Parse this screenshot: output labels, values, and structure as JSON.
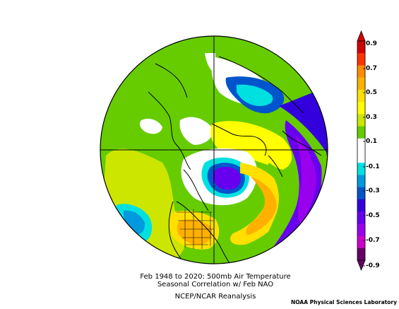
{
  "caption": {
    "line1": "Feb 1948 to 2020: 500mb Air Temperature",
    "line2": "Seasonal Correlation w/ Feb NAO",
    "line3": "NCEP/NCAR Reanalysis"
  },
  "credit": "NOAA Physical Sciences Laboratory",
  "colorbar": {
    "labels": [
      "0.9",
      "0.7",
      "0.5",
      "0.3",
      "0.1",
      "-0.1",
      "-0.3",
      "-0.5",
      "-0.7",
      "-0.9"
    ],
    "colors": [
      "#d40000",
      "#ff3300",
      "#ff8c00",
      "#ffb000",
      "#ffe000",
      "#ffff00",
      "#cce600",
      "#66cc00",
      "#ffffff",
      "#ffffff",
      "#00e0e0",
      "#0099dd",
      "#0055cc",
      "#3300dd",
      "#6600ee",
      "#9900ee",
      "#cc00cc",
      "#660066"
    ]
  },
  "palette": {
    "green": "#66cc00",
    "yellowgreen": "#cce600",
    "yellow": "#ffff00",
    "gold": "#ffe000",
    "orange": "#ffb000",
    "darkorange": "#ff8c00",
    "cyan": "#00e0e0",
    "blue": "#0099dd",
    "darkblue": "#0055cc",
    "violet": "#3300dd",
    "purple": "#6600ee",
    "magenta": "#9900ee"
  }
}
